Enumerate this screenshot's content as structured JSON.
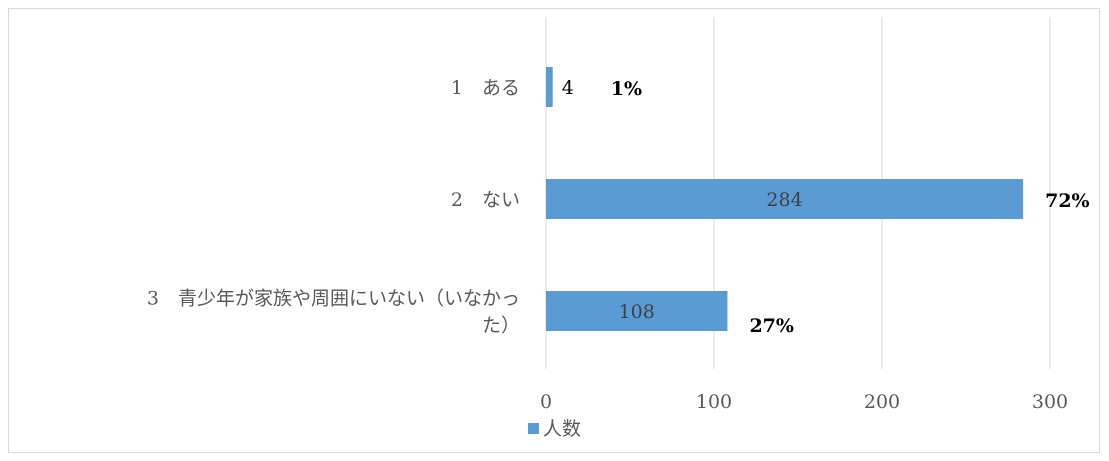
{
  "chart_data": {
    "type": "bar",
    "orientation": "horizontal",
    "categories": [
      "1　ある",
      "2　ない",
      "3　青少年が家族や周囲にいない（いなかった）"
    ],
    "category_lines": [
      [
        "1　ある"
      ],
      [
        "2　ない"
      ],
      [
        "3　青少年が家族や周囲にいない（いなかっ",
        "た）"
      ]
    ],
    "series": [
      {
        "name": "人数",
        "values": [
          4,
          284,
          108
        ],
        "color": "#5b9bd5"
      }
    ],
    "percent_labels": [
      "1%",
      "72%",
      "27%"
    ],
    "xlim": [
      0,
      300
    ],
    "xticks": [
      0,
      100,
      200,
      300
    ],
    "grid": true,
    "legend_position": "bottom"
  }
}
